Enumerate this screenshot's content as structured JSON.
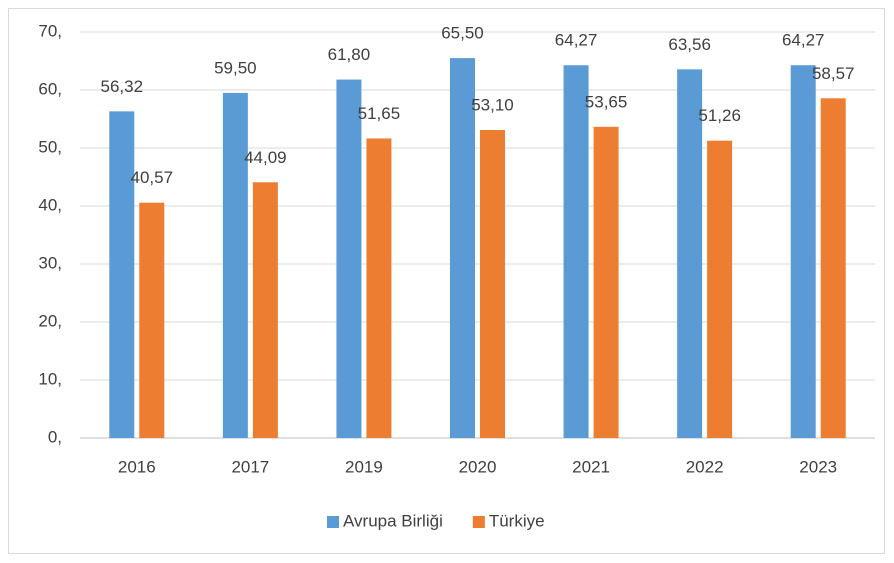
{
  "chart_data": {
    "type": "bar",
    "categories": [
      "2016",
      "2017",
      "2019",
      "2020",
      "2021",
      "2022",
      "2023"
    ],
    "series": [
      {
        "name": "Avrupa Birliği",
        "color": "#5b9bd5",
        "values": [
          56.32,
          59.5,
          61.8,
          65.5,
          64.27,
          63.56,
          64.27
        ],
        "value_labels": [
          "56,32",
          "59,50",
          "61,80",
          "65,50",
          "64,27",
          "63,56",
          "64,27"
        ]
      },
      {
        "name": "Türkiye",
        "color": "#ed7d31",
        "values": [
          40.57,
          44.09,
          51.65,
          53.1,
          53.65,
          51.26,
          58.57
        ],
        "value_labels": [
          "40,57",
          "44,09",
          "51,65",
          "53,10",
          "53,65",
          "51,26",
          "58,57"
        ]
      }
    ],
    "ylim": [
      0,
      70
    ],
    "yticks": [
      {
        "value": 0,
        "label": "0,"
      },
      {
        "value": 10,
        "label": "10,"
      },
      {
        "value": 20,
        "label": "20,"
      },
      {
        "value": 30,
        "label": "30,"
      },
      {
        "value": 40,
        "label": "40,"
      },
      {
        "value": 50,
        "label": "50,"
      },
      {
        "value": 60,
        "label": "60,"
      },
      {
        "value": 70,
        "label": "70,"
      }
    ],
    "grid": true,
    "legend": "bottom"
  }
}
